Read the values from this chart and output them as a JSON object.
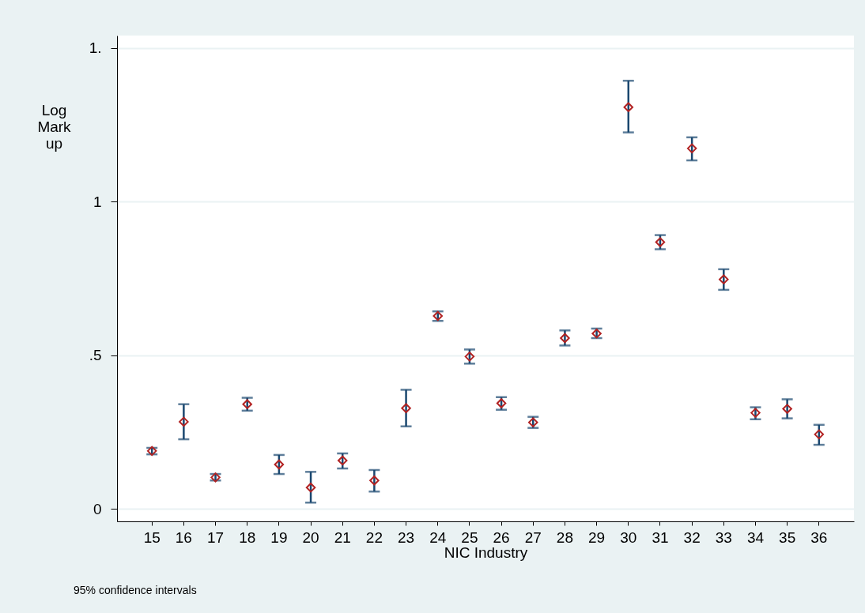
{
  "chart_data": {
    "type": "scatter",
    "xlabel": "NIC Industry",
    "ylabel": "Log Mark up",
    "categories": [
      "15",
      "16",
      "17",
      "18",
      "19",
      "20",
      "21",
      "22",
      "23",
      "24",
      "25",
      "26",
      "27",
      "28",
      "29",
      "30",
      "31",
      "32",
      "33",
      "34",
      "35",
      "36"
    ],
    "series": [
      {
        "color": "#b22222",
        "values": [
          0.189,
          0.284,
          0.103,
          0.341,
          0.145,
          0.07,
          0.158,
          0.093,
          0.328,
          0.628,
          0.496,
          0.344,
          0.282,
          0.556,
          0.571,
          1.307,
          0.868,
          1.173,
          0.747,
          0.313,
          0.326,
          0.243
        ],
        "errors": [
          [
            0.178,
            0.199
          ],
          [
            0.227,
            0.341
          ],
          [
            0.093,
            0.114
          ],
          [
            0.32,
            0.362
          ],
          [
            0.114,
            0.176
          ],
          [
            0.021,
            0.121
          ],
          [
            0.132,
            0.181
          ],
          [
            0.057,
            0.127
          ],
          [
            0.269,
            0.388
          ],
          [
            0.612,
            0.643
          ],
          [
            0.473,
            0.519
          ],
          [
            0.323,
            0.364
          ],
          [
            0.264,
            0.3
          ],
          [
            0.532,
            0.581
          ],
          [
            0.556,
            0.587
          ],
          [
            1.225,
            1.393
          ],
          [
            0.845,
            0.891
          ],
          [
            1.134,
            1.209
          ],
          [
            0.713,
            0.78
          ],
          [
            0.292,
            0.331
          ],
          [
            0.295,
            0.357
          ],
          [
            0.209,
            0.274
          ]
        ]
      }
    ],
    "ylim": [
      -0.04,
      1.54
    ],
    "yticks": [
      0,
      {
        "value": 0.5,
        "label": ".5"
      },
      1,
      {
        "value": 1.5,
        "label": "1."
      }
    ],
    "grid": "y",
    "marker": "diamond",
    "annotations": [
      "95% confidence intervals"
    ]
  }
}
